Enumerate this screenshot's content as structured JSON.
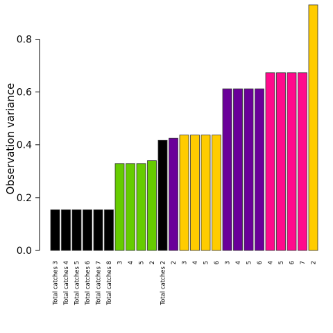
{
  "chart_data": {
    "type": "bar",
    "xlabel": "",
    "ylabel": "Observation variance",
    "ylim": [
      0,
      0.93
    ],
    "yticks": [
      0.0,
      0.2,
      0.4,
      0.6,
      0.8
    ],
    "ytick_labels": [
      "0.0",
      "0.2",
      "0.4",
      "0.6",
      "0.8"
    ],
    "grid": false,
    "legend": "none",
    "categories": [
      "Total catches 3",
      "Total catches 4",
      "Total catches 5",
      "Total catches 6",
      "Total catches 7",
      "Total catches 8",
      "3",
      "4",
      "5",
      "2",
      "Total catches 2",
      "2",
      "3",
      "4",
      "5",
      "6",
      "3",
      "4",
      "5",
      "6",
      "4",
      "5",
      "6",
      "7",
      "2"
    ],
    "values": [
      0.154,
      0.154,
      0.154,
      0.154,
      0.154,
      0.154,
      0.329,
      0.329,
      0.329,
      0.34,
      0.417,
      0.425,
      0.437,
      0.437,
      0.437,
      0.437,
      0.612,
      0.612,
      0.612,
      0.612,
      0.673,
      0.673,
      0.673,
      0.673,
      0.93
    ],
    "colors": [
      "#000000",
      "#000000",
      "#000000",
      "#000000",
      "#000000",
      "#000000",
      "#66cc00",
      "#66cc00",
      "#66cc00",
      "#66cc00",
      "#000000",
      "#6a0099",
      "#ffcc00",
      "#ffcc00",
      "#ffcc00",
      "#ffcc00",
      "#6a0099",
      "#6a0099",
      "#6a0099",
      "#6a0099",
      "#ff0a8c",
      "#ff0a8c",
      "#ff0a8c",
      "#ff0a8c",
      "#ffcc00"
    ]
  }
}
